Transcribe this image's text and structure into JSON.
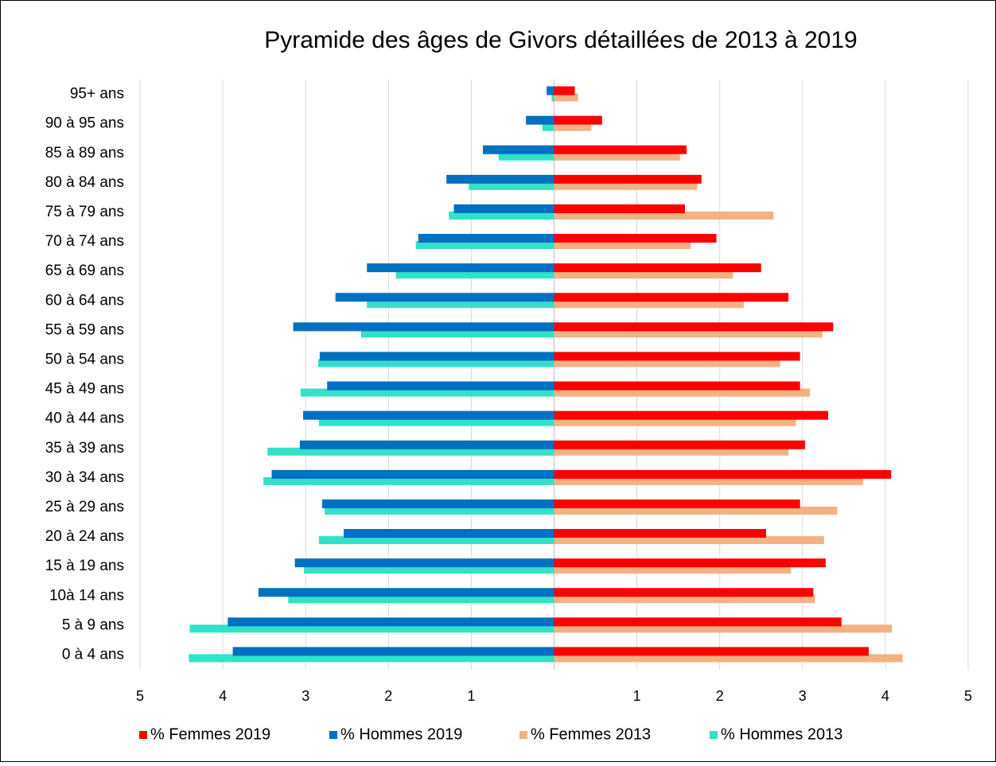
{
  "chart_data": {
    "type": "bar",
    "orientation": "horizontal",
    "title": "Pyramide des âges de Givors détaillées de 2013 à 2019",
    "categories": [
      "95+ ans",
      "90 à 95 ans",
      "85 à 89 ans",
      "80 à 84 ans",
      "75 à 79 ans",
      "70 à 74 ans",
      "65 à 69 ans",
      "60 à 64 ans",
      "55 à 59 ans",
      "50 à 54 ans",
      "45 à 49 ans",
      "40 à 44 ans",
      "35 à 39 ans",
      "30 à 34  ans",
      "25 à 29 ans",
      "20 à 24 ans",
      "15 à 19 ans",
      "10à 14 ans",
      "5 à 9 ans",
      "0 à 4 ans"
    ],
    "series": [
      {
        "name": "% Femmes 2019",
        "color": "#ff0000",
        "values": [
          0.25,
          0.58,
          1.6,
          1.78,
          1.58,
          1.96,
          2.5,
          2.83,
          3.37,
          2.97,
          2.97,
          3.31,
          3.03,
          4.07,
          2.97,
          2.56,
          3.28,
          3.13,
          3.47,
          3.8
        ]
      },
      {
        "name": "% Hommes 2019",
        "color": "#0070c0",
        "values": [
          -0.09,
          -0.34,
          -0.86,
          -1.3,
          -1.21,
          -1.64,
          -2.26,
          -2.64,
          -3.15,
          -2.83,
          -2.74,
          -3.03,
          -3.07,
          -3.41,
          -2.8,
          -2.54,
          -3.13,
          -3.57,
          -3.94,
          -3.88
        ]
      },
      {
        "name": "% Femmes 2013",
        "color": "#f4b183",
        "values": [
          0.29,
          0.45,
          1.52,
          1.73,
          2.65,
          1.65,
          2.16,
          2.29,
          3.24,
          2.73,
          3.09,
          2.92,
          2.83,
          3.73,
          3.42,
          3.26,
          2.86,
          3.15,
          4.08,
          4.21
        ]
      },
      {
        "name": "% Hommes 2013",
        "color": "#33e0c8",
        "values": [
          -0.03,
          -0.14,
          -0.67,
          -1.03,
          -1.27,
          -1.67,
          -1.91,
          -2.26,
          -2.33,
          -2.85,
          -3.06,
          -2.84,
          -3.46,
          -3.51,
          -2.77,
          -2.84,
          -3.02,
          -3.21,
          -4.4,
          -4.41
        ]
      }
    ],
    "xlim": [
      -5,
      5
    ],
    "xticks": [
      {
        "value": -5,
        "label": "5"
      },
      {
        "value": -4,
        "label": "4"
      },
      {
        "value": -3,
        "label": "3"
      },
      {
        "value": -2,
        "label": "2"
      },
      {
        "value": -1,
        "label": "1"
      },
      1,
      2,
      3,
      4,
      5
    ],
    "grid": true,
    "legend": "bottom"
  }
}
